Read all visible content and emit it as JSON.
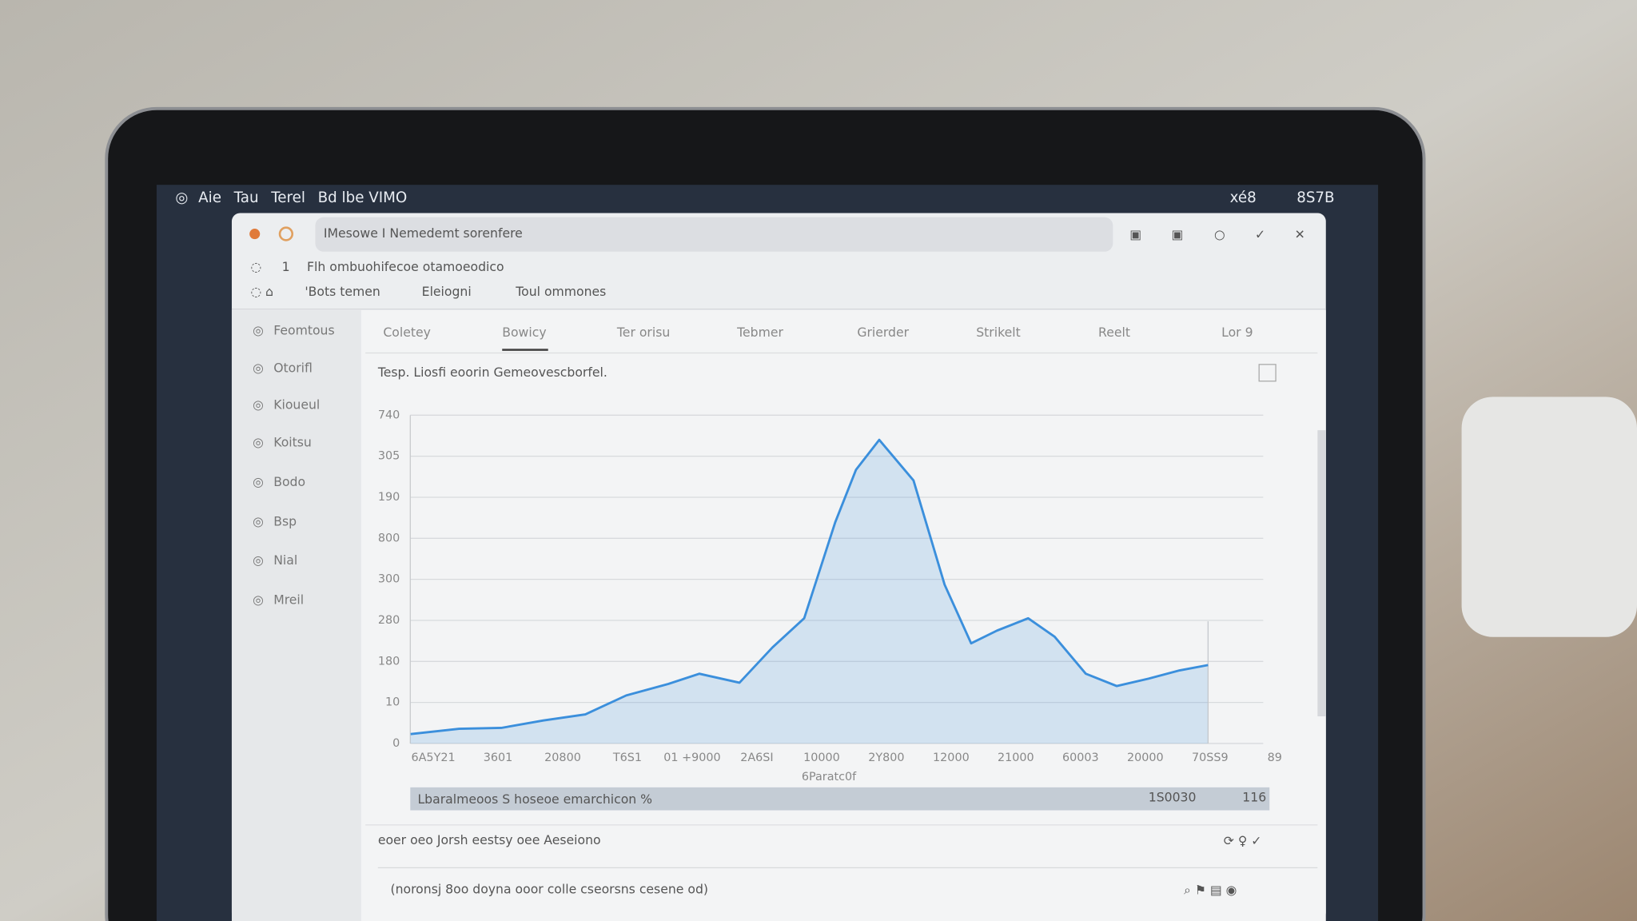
{
  "menu_bar": {
    "left": [
      "Aie",
      "Tau",
      "Terel",
      "Bd lbe VIMO"
    ],
    "right": [
      "xé8",
      "8S7B"
    ]
  },
  "window": {
    "title": "IMesowe I Nemedemt sorenfere",
    "toolbar": {
      "row1": [
        "1",
        "Flh ombuohifecoe otamoeodico"
      ],
      "row2": [
        "'Bots temen",
        "Eleiogni",
        "Toul ommones"
      ]
    },
    "sidebar": [
      "Feomtous",
      "Otorifl",
      "Kioueul",
      "Koitsu",
      "Bodo",
      "Bsp",
      "Nial",
      "Mreil"
    ],
    "tabs": [
      "Coletey",
      "Bowicy",
      "Ter orisu",
      "Tebmer",
      "Grierder",
      "Strikelt",
      "Reelt",
      "Lor 9"
    ],
    "range_bar": {
      "label": "Lbaralmeoos S hoseoe emarchicon %",
      "right": [
        "1S0030",
        "116"
      ]
    },
    "footer": "eoer oeo Jorsh eestsy oee Aeseiono",
    "input": "(noronsj 8oo doyna ooor colle cseorsns cesene od)"
  },
  "chart_data": {
    "type": "line",
    "subtitle": "Tesp. Liosfi eoorin Gemeovescborfel.",
    "x_label": "6Paratc0f",
    "x": [
      -0.35,
      0.4,
      1.05,
      1.7,
      2.35,
      2.98,
      3.63,
      4.11,
      4.73,
      5.24,
      5.73,
      6.21,
      6.53,
      6.89,
      7.42,
      7.9,
      8.31,
      8.71,
      9.19,
      9.6,
      10.08,
      10.56,
      11.05,
      11.53,
      11.97
    ],
    "series": [
      {
        "color": "#3b8fdc",
        "values": [
          23,
          36,
          38,
          56,
          71,
          117,
          145,
          170,
          148,
          234,
          305,
          539,
          667,
          740,
          641,
          387,
          244,
          275,
          305,
          260,
          170,
          140,
          158,
          178,
          191
        ]
      }
    ],
    "xlim": [
      -0.4,
      13.2
    ],
    "ylim": [
      0,
      800
    ],
    "xticks": [
      {
        "value": 0,
        "label": "6A5Y21"
      },
      {
        "value": 1,
        "label": "3601"
      },
      {
        "value": 2,
        "label": "20800"
      },
      {
        "value": 3,
        "label": "T6S1"
      },
      {
        "value": 4,
        "label": "01 +9000"
      },
      {
        "value": 5,
        "label": "2A6SI"
      },
      {
        "value": 6,
        "label": "10000"
      },
      {
        "value": 7,
        "label": "2Y800"
      },
      {
        "value": 8,
        "label": "12000"
      },
      {
        "value": 9,
        "label": "21000"
      },
      {
        "value": 10,
        "label": "60003"
      },
      {
        "value": 11,
        "label": "20000"
      },
      {
        "value": 12,
        "label": "70SS9"
      },
      {
        "value": 13,
        "label": "89"
      }
    ],
    "yticks": [
      0,
      {
        "value": 100,
        "label": "10"
      },
      {
        "value": 200,
        "label": "180"
      },
      {
        "value": 300,
        "label": "280"
      },
      {
        "value": 400,
        "label": "300"
      },
      {
        "value": 500,
        "label": "800"
      },
      {
        "value": 600,
        "label": "190"
      },
      {
        "value": 700,
        "label": "305"
      },
      {
        "value": 800,
        "label": "740"
      }
    ],
    "grid": true
  }
}
